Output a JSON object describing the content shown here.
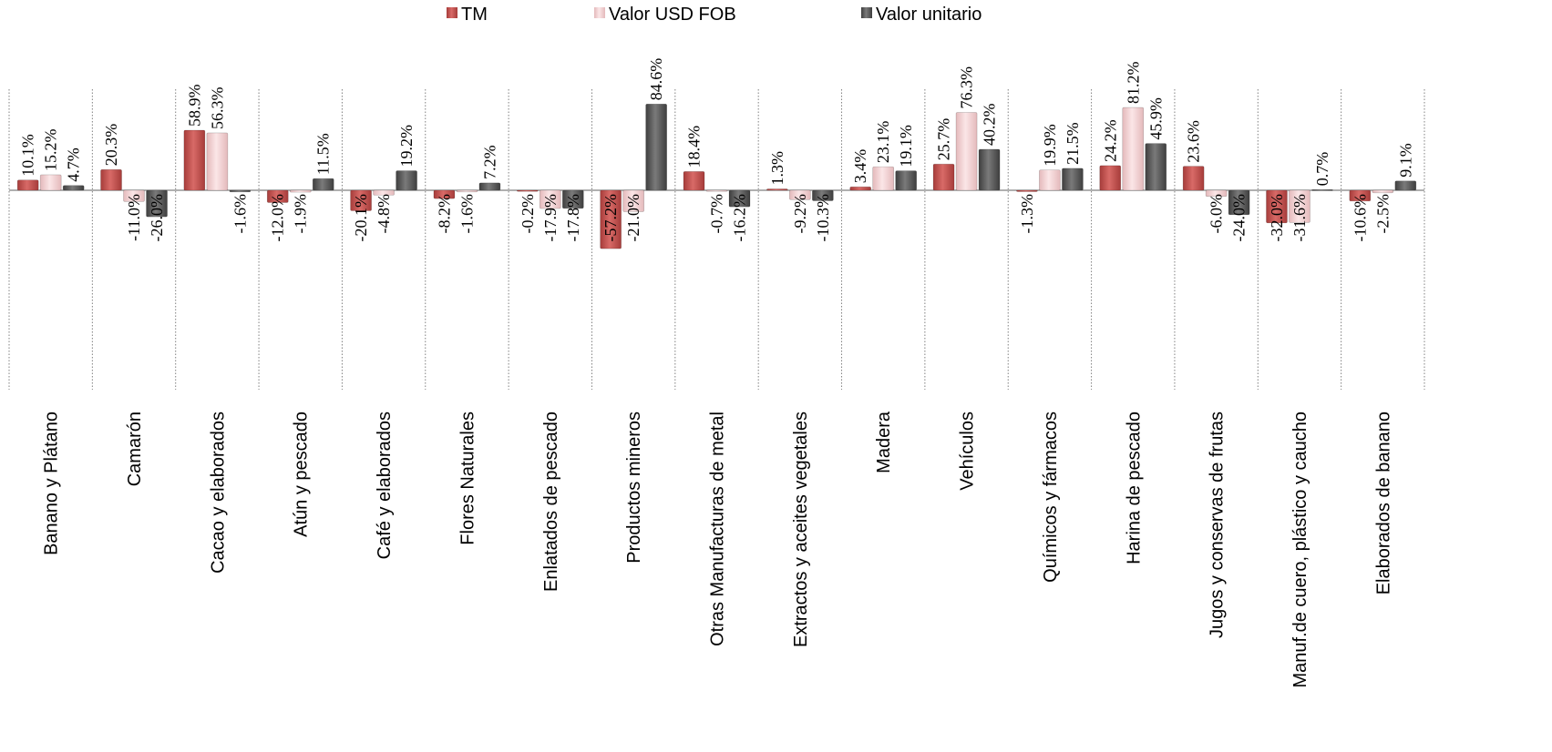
{
  "chart_data": {
    "type": "bar",
    "categories": [
      "Banano y Plátano",
      "Camarón",
      "Cacao y elaborados",
      "Atún y pescado",
      "Café y elaborados",
      "Flores Naturales",
      "Enlatados de pescado",
      "Productos mineros",
      "Otras Manufacturas de metal",
      "Extractos y aceites vegetales",
      "Madera",
      "Vehículos",
      "Químicos y fármacos",
      "Harina de pescado",
      "Jugos y conservas de frutas",
      "Manuf.de cuero, plástico y caucho",
      "Elaborados de banano"
    ],
    "series": [
      {
        "name": "TM",
        "color": "#c0504d",
        "values": [
          10.1,
          20.3,
          58.9,
          -12.0,
          -20.1,
          -8.2,
          -0.2,
          -57.2,
          18.4,
          1.3,
          3.4,
          25.7,
          -1.3,
          24.2,
          23.6,
          -32.0,
          -10.6
        ]
      },
      {
        "name": "Valor  USD FOB",
        "color": "#f2d2d3",
        "values": [
          15.2,
          -11.0,
          56.3,
          -1.9,
          -4.8,
          -1.6,
          -17.9,
          -21.0,
          -0.7,
          -9.2,
          23.1,
          76.3,
          19.9,
          81.2,
          -6.0,
          -31.6,
          -2.5
        ]
      },
      {
        "name": "Valor unitario",
        "color": "#595959",
        "values": [
          4.7,
          -26.0,
          -1.6,
          11.5,
          19.2,
          7.2,
          -17.8,
          84.6,
          -16.2,
          -10.3,
          19.1,
          40.2,
          21.5,
          45.9,
          -24.0,
          0.7,
          9.1
        ]
      }
    ],
    "labels": [
      [
        "10.1%",
        "20.3%",
        "58.9%",
        "-12.0%",
        "-20.1%",
        "-8.2%",
        "-0.2%",
        "-57.2%",
        "18.4%",
        "1.3%",
        "3.4%",
        "25.7%",
        "-1.3%",
        "24.2%",
        "23.6%",
        "-32.0%",
        "-10.6%"
      ],
      [
        "15.2%",
        "-11.0%",
        "56.3%",
        "-1.9%",
        "-4.8%",
        "-1.6%",
        "-17.9%",
        "-21.0%",
        "-0.7%",
        "-9.2%",
        "23.1%",
        "76.3%",
        "19.9%",
        "81.2%",
        "-6.0%",
        "-31.6%",
        "-2.5%"
      ],
      [
        "4.7%",
        "-26.0%",
        "-1.6%",
        "11.5%",
        "19.2%",
        "7.2%",
        "-17.8%",
        "84.6%",
        "-16.2%",
        "-10.3%",
        "19.1%",
        "40.2%",
        "21.5%",
        "45.9%",
        "-24.0%",
        "0.7%",
        "9.1%"
      ]
    ],
    "legend_position": "top",
    "grid": "vertical-dotted-separators",
    "ylim": [
      -200,
      100
    ]
  }
}
